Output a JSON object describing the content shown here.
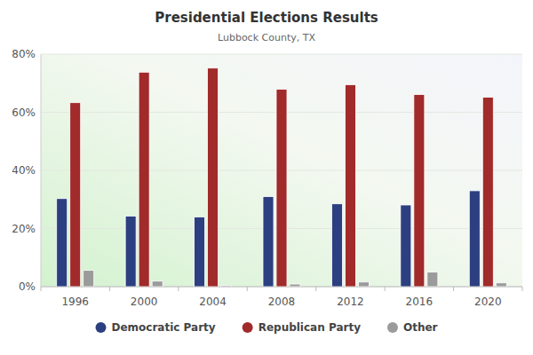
{
  "chart_data": {
    "type": "bar",
    "title": "Presidential Elections Results",
    "subtitle": "Lubbock County, TX",
    "categories": [
      "1996",
      "2000",
      "2004",
      "2008",
      "2012",
      "2016",
      "2020"
    ],
    "series": [
      {
        "name": "Democratic Party",
        "color": "#2c3f80",
        "values": [
          30.3,
          24.3,
          24.0,
          31.0,
          28.5,
          28.1,
          33.0
        ]
      },
      {
        "name": "Republican Party",
        "color": "#a12a2a",
        "values": [
          63.3,
          73.8,
          75.2,
          67.9,
          69.5,
          66.1,
          65.2
        ]
      },
      {
        "name": "Other",
        "color": "#9b9b9b",
        "values": [
          5.6,
          1.9,
          0.4,
          0.9,
          1.6,
          5.0,
          1.3
        ]
      }
    ],
    "ylim": [
      0,
      80
    ],
    "yticks": [
      {
        "value": 0,
        "label": "0%"
      },
      {
        "value": 20,
        "label": "20%"
      },
      {
        "value": 40,
        "label": "40%"
      },
      {
        "value": 60,
        "label": "60%"
      },
      {
        "value": 80,
        "label": "80%"
      }
    ],
    "grid": true,
    "legend": "bottom"
  }
}
